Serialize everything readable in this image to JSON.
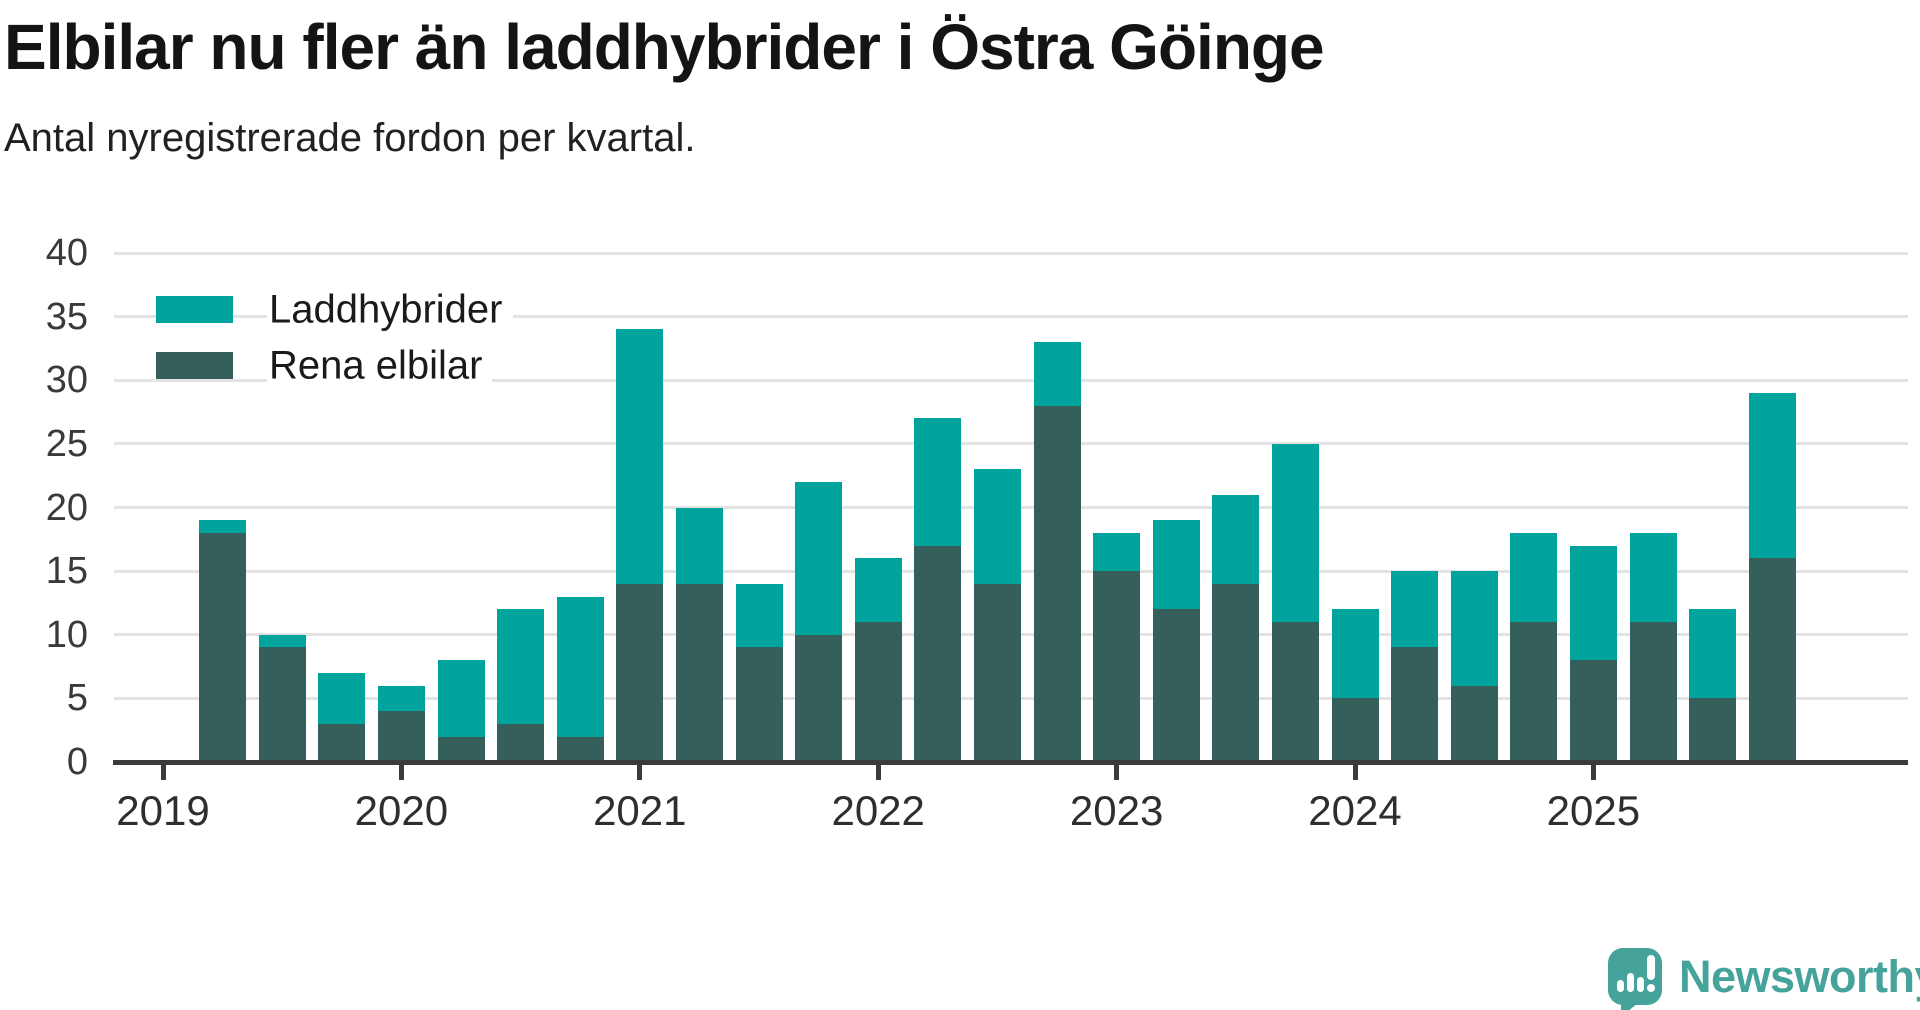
{
  "header": {
    "title": "Elbilar nu fler än laddhybrider i Östra Göinge",
    "subtitle": "Antal nyregistrerade fordon per kvartal."
  },
  "footer": {
    "brand": "Newsworthy"
  },
  "colors": {
    "laddhybrider": "#00a49c",
    "rena_elbilar": "#365f5b",
    "grid": "#e3e3e3",
    "axis": "#3b3b3b",
    "logo": "#45a39c"
  },
  "chart_data": {
    "type": "bar",
    "stacked": true,
    "title": "Elbilar nu fler än laddhybrider i Östra Göinge",
    "subtitle": "Antal nyregistrerade fordon per kvartal.",
    "categories": [
      "2019 K2",
      "2019 K3",
      "2019 K4",
      "2020 K1",
      "2020 K2",
      "2020 K3",
      "2020 K4",
      "2021 K1",
      "2021 K2",
      "2021 K3",
      "2021 K4",
      "2022 K1",
      "2022 K2",
      "2022 K3",
      "2022 K4",
      "2023 K1",
      "2023 K2",
      "2023 K3",
      "2023 K4",
      "2024 K1",
      "2024 K2",
      "2024 K3",
      "2024 K4",
      "2025 K1",
      "2025 K2",
      "2025 K3",
      "2025 K4"
    ],
    "series": [
      {
        "name": "Laddhybrider",
        "color": "#00a49c",
        "values": [
          1,
          1,
          4,
          2,
          6,
          9,
          11,
          20,
          6,
          5,
          12,
          5,
          10,
          9,
          5,
          3,
          7,
          7,
          14,
          7,
          6,
          9,
          7,
          9,
          7,
          7,
          13
        ]
      },
      {
        "name": "Rena elbilar",
        "color": "#365f5b",
        "values": [
          18,
          9,
          3,
          4,
          2,
          3,
          2,
          14,
          14,
          9,
          10,
          11,
          17,
          14,
          28,
          15,
          12,
          14,
          11,
          5,
          9,
          6,
          11,
          8,
          11,
          5,
          16
        ]
      }
    ],
    "totals": [
      19,
      10,
      7,
      6,
      8,
      12,
      13,
      34,
      20,
      14,
      22,
      16,
      27,
      23,
      33,
      18,
      19,
      21,
      25,
      12,
      15,
      15,
      18,
      17,
      18,
      12,
      29
    ],
    "x_tick_labels": [
      "2019",
      "2020",
      "2021",
      "2022",
      "2023",
      "2024",
      "2025"
    ],
    "xlabel": "",
    "ylabel": "",
    "ylim": [
      0,
      40
    ],
    "y_ticks": [
      0,
      5,
      10,
      15,
      20,
      25,
      30,
      35,
      40
    ],
    "grid": "horizontal",
    "legend_position": "top-left"
  }
}
